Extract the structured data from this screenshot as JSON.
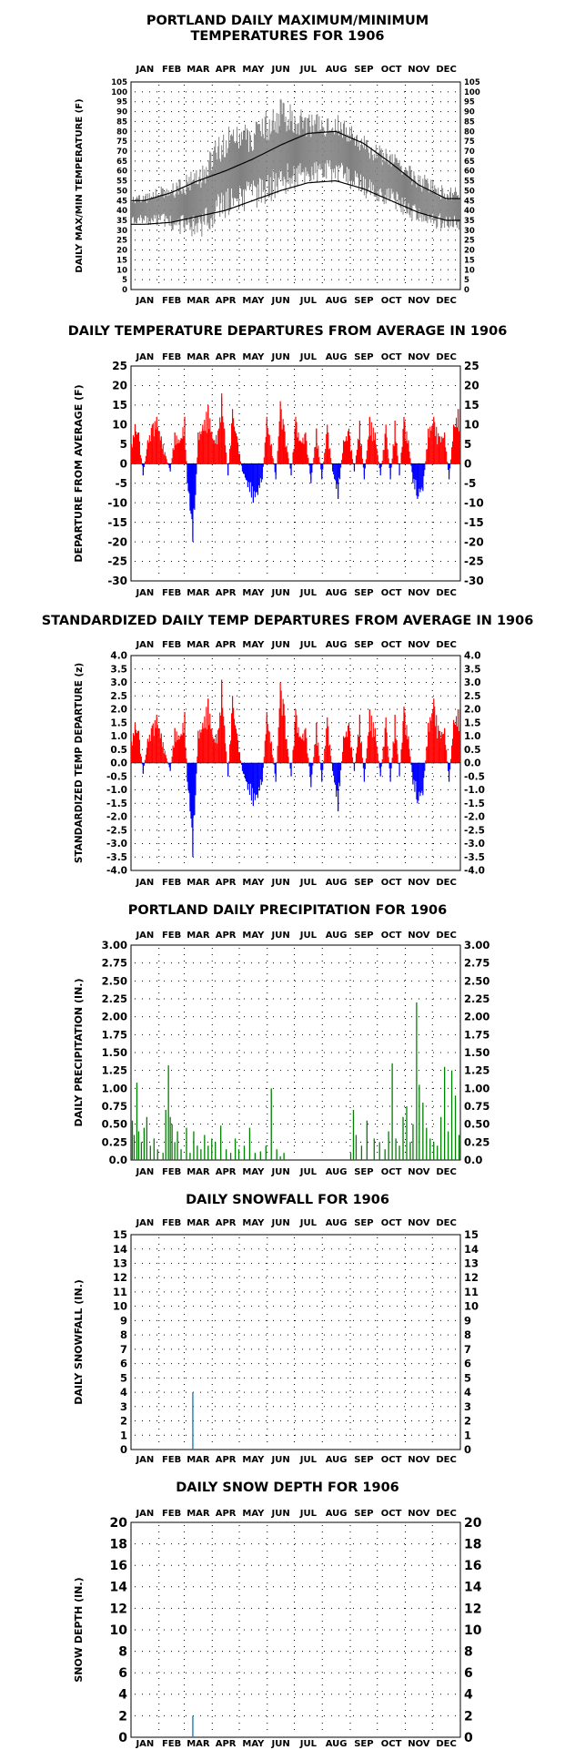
{
  "months": [
    "JAN",
    "FEB",
    "MAR",
    "APR",
    "MAY",
    "JUN",
    "JUL",
    "AUG",
    "SEP",
    "OCT",
    "NOV",
    "DEC"
  ],
  "colors": {
    "gray_series": "#808080",
    "normal_line": "#000000",
    "positive": "#ff0000",
    "negative": "#0000ff",
    "precip": "#008000",
    "snow": "#1e7fbf"
  },
  "panels": [
    {
      "title_lines": [
        "PORTLAND DAILY MAXIMUM/MINIMUM",
        "TEMPERATURES FOR 1906"
      ]
    },
    {
      "title_lines": [
        "DAILY TEMPERATURE DEPARTURES FROM AVERAGE IN 1906"
      ]
    },
    {
      "title_lines": [
        "STANDARDIZED DAILY TEMP DEPARTURES FROM AVERAGE IN 1906"
      ]
    },
    {
      "title_lines": [
        "PORTLAND DAILY PRECIPITATION FOR 1906"
      ]
    },
    {
      "title_lines": [
        "DAILY SNOWFALL FOR 1906"
      ]
    },
    {
      "title_lines": [
        "DAILY SNOW DEPTH FOR 1906"
      ]
    }
  ],
  "chart_data": [
    {
      "type": "area",
      "title": "PORTLAND DAILY MAXIMUM/MINIMUM TEMPERATURES FOR 1906",
      "xlabel": "",
      "ylabel": "DAILY MAX/MIN TEMPERATURE (F)",
      "ylim": [
        0,
        105
      ],
      "yticks": [
        "0",
        "5",
        "10",
        "15",
        "20",
        "25",
        "30",
        "35",
        "40",
        "45",
        "50",
        "55",
        "60",
        "65",
        "70",
        "75",
        "80",
        "85",
        "90",
        "95",
        "100",
        "105"
      ],
      "grid": true,
      "daily_range_max_by_month": [
        49,
        54,
        62,
        83,
        84,
        97,
        90,
        90,
        79,
        70,
        60,
        52
      ],
      "daily_range_min_by_month": [
        33,
        30,
        24,
        36,
        40,
        47,
        53,
        54,
        46,
        42,
        32,
        30
      ],
      "normal_high_by_month": [
        45,
        49,
        55,
        60,
        66,
        73,
        79,
        80,
        74,
        64,
        53,
        46
      ],
      "normal_low_by_month": [
        33,
        34,
        37,
        40,
        45,
        50,
        54,
        55,
        51,
        45,
        39,
        35
      ]
    },
    {
      "type": "bar",
      "title": "DAILY TEMPERATURE DEPARTURES FROM AVERAGE IN 1906",
      "xlabel": "",
      "ylabel": "DEPARTURE FROM AVERAGE (F)",
      "ylim": [
        -30,
        25
      ],
      "yticks": [
        "-30",
        "-25",
        "-20",
        "-15",
        "-10",
        "-5",
        "0",
        "5",
        "10",
        "15",
        "20",
        "25"
      ],
      "yticks_right": [
        "-30",
        "-25",
        "-20",
        "-15",
        "-10",
        "-5",
        "0",
        "5",
        "10",
        "15",
        "20",
        "25"
      ],
      "grid": true,
      "day_of_year": [
        1,
        5,
        9,
        14,
        19,
        24,
        29,
        34,
        39,
        44,
        49,
        55,
        60,
        63,
        66,
        69,
        72,
        75,
        80,
        86,
        92,
        98,
        101,
        104,
        108,
        113,
        118,
        124,
        130,
        136,
        141,
        146,
        151,
        156,
        161,
        166,
        170,
        174,
        178,
        183,
        188,
        194,
        200,
        206,
        212,
        218,
        224,
        230,
        236,
        242,
        248,
        254,
        259,
        265,
        271,
        277,
        283,
        288,
        293,
        298,
        303,
        308,
        313,
        318,
        324,
        330,
        336,
        342,
        348,
        353,
        358,
        363
      ],
      "values": [
        5,
        10,
        8,
        -3,
        6,
        10,
        12,
        7,
        2,
        -2,
        8,
        6,
        12,
        -5,
        -12,
        -20,
        -8,
        8,
        10,
        15,
        6,
        9,
        18,
        9,
        -3,
        14,
        7,
        -2,
        -6,
        -10,
        -8,
        -4,
        12,
        5,
        -4,
        16,
        10,
        3,
        -3,
        12,
        6,
        8,
        -5,
        9,
        -4,
        10,
        -2,
        -9,
        6,
        9,
        -2,
        11,
        -4,
        12,
        8,
        -3,
        10,
        -4,
        11,
        -3,
        12,
        6,
        -5,
        -9,
        -7,
        9,
        12,
        7,
        8,
        -4,
        10,
        14
      ]
    },
    {
      "type": "bar",
      "title": "STANDARDIZED DAILY TEMP DEPARTURES FROM AVERAGE IN 1906",
      "xlabel": "",
      "ylabel": "STANDARDIZED TEMP DEPARTURE (z)",
      "ylim": [
        -4,
        4
      ],
      "yticks": [
        "-4.0",
        "-3.5",
        "-3.0",
        "-2.5",
        "-2.0",
        "-1.5",
        "-1.0",
        "-0.5",
        "0.0",
        "0.5",
        "1.0",
        "1.5",
        "2.0",
        "2.5",
        "3.0",
        "3.5",
        "4.0"
      ],
      "yticks_right": [
        "-4.0",
        "-3.5",
        "-3.0",
        "-2.5",
        "-2.0",
        "-1.5",
        "-1.0",
        "-0.5",
        "0.0",
        "0.5",
        "1.0",
        "1.5",
        "2.0",
        "2.5",
        "3.0",
        "3.5",
        "4.0"
      ],
      "grid": true,
      "day_of_year": [
        1,
        5,
        9,
        14,
        19,
        24,
        29,
        34,
        39,
        44,
        49,
        55,
        60,
        63,
        66,
        69,
        72,
        75,
        80,
        86,
        92,
        98,
        101,
        104,
        108,
        113,
        118,
        124,
        130,
        136,
        141,
        146,
        151,
        156,
        161,
        166,
        170,
        174,
        178,
        183,
        188,
        194,
        200,
        206,
        212,
        218,
        224,
        230,
        236,
        242,
        248,
        254,
        259,
        265,
        271,
        277,
        283,
        288,
        293,
        298,
        303,
        308,
        313,
        318,
        324,
        330,
        336,
        342,
        348,
        353,
        358,
        363
      ],
      "values": [
        0.8,
        1.5,
        1.2,
        -0.4,
        0.9,
        1.4,
        1.8,
        1.1,
        0.3,
        -0.3,
        1.3,
        1.0,
        1.9,
        -0.7,
        -1.8,
        -3.5,
        -1.2,
        1.2,
        1.5,
        2.4,
        0.9,
        1.3,
        3.1,
        1.4,
        -0.5,
        2.5,
        1.1,
        -0.3,
        -1.0,
        -1.6,
        -1.3,
        -0.7,
        1.9,
        0.8,
        -0.7,
        3.0,
        2.2,
        0.5,
        -0.5,
        2.0,
        1.0,
        1.3,
        -0.9,
        1.5,
        -0.7,
        1.7,
        -0.3,
        -1.8,
        1.0,
        1.5,
        -0.3,
        1.8,
        -0.7,
        2.0,
        1.3,
        -0.5,
        1.7,
        -0.7,
        1.8,
        -0.5,
        2.1,
        1.0,
        -0.8,
        -1.5,
        -1.2,
        1.5,
        2.4,
        1.2,
        1.3,
        -0.7,
        1.6,
        2.0
      ]
    },
    {
      "type": "bar",
      "title": "PORTLAND DAILY PRECIPITATION FOR 1906",
      "xlabel": "",
      "ylabel": "DAILY PRECIPITATION (IN.)",
      "ylim": [
        0,
        3
      ],
      "yticks": [
        "0.0",
        "0.25",
        "0.50",
        "0.75",
        "1.00",
        "1.25",
        "1.50",
        "1.75",
        "2.00",
        "2.25",
        "2.50",
        "2.75",
        "3.00"
      ],
      "yticks_right": [
        "0.0",
        "0.25",
        "0.50",
        "0.75",
        "1.00",
        "1.25",
        "1.50",
        "1.75",
        "2.00",
        "2.25",
        "2.50",
        "2.75",
        "3.00"
      ],
      "grid": true,
      "day_of_year": [
        2,
        4,
        7,
        9,
        12,
        15,
        18,
        22,
        26,
        30,
        36,
        39,
        42,
        44,
        46,
        49,
        52,
        56,
        62,
        66,
        70,
        74,
        78,
        82,
        86,
        90,
        94,
        100,
        106,
        111,
        116,
        120,
        126,
        132,
        138,
        144,
        150,
        156,
        162,
        166,
        170,
        244,
        247,
        250,
        256,
        262,
        270,
        276,
        282,
        286,
        290,
        294,
        298,
        302,
        306,
        310,
        313,
        317,
        320,
        324,
        328,
        332,
        336,
        340,
        344,
        348,
        352,
        356,
        360,
        364
      ],
      "values": [
        0.55,
        0.35,
        1.08,
        0.4,
        0.25,
        0.45,
        0.6,
        0.2,
        0.3,
        0.15,
        0.1,
        0.7,
        1.32,
        0.6,
        0.5,
        0.25,
        0.4,
        0.15,
        0.45,
        0.1,
        0.4,
        0.2,
        0.15,
        0.35,
        0.2,
        0.3,
        0.25,
        0.48,
        0.15,
        0.1,
        0.3,
        0.15,
        0.2,
        0.45,
        0.1,
        0.12,
        0.2,
        1.0,
        0.15,
        0.05,
        0.1,
        0.1,
        0.7,
        0.35,
        0.2,
        0.55,
        0.3,
        0.25,
        0.15,
        0.4,
        1.35,
        0.3,
        0.2,
        0.6,
        0.75,
        0.25,
        0.5,
        2.2,
        1.05,
        0.8,
        0.45,
        0.3,
        0.25,
        0.2,
        0.6,
        1.3,
        0.4,
        1.25,
        0.9,
        0.35
      ]
    },
    {
      "type": "bar",
      "title": "DAILY SNOWFALL FOR 1906",
      "xlabel": "",
      "ylabel": "DAILY SNOWFALL (IN.)",
      "ylim": [
        0,
        15
      ],
      "yticks": [
        "0",
        "1",
        "2",
        "3",
        "4",
        "5",
        "6",
        "7",
        "8",
        "9",
        "10",
        "11",
        "12",
        "13",
        "14",
        "15"
      ],
      "yticks_right": [
        "0",
        "1",
        "2",
        "3",
        "4",
        "5",
        "6",
        "7",
        "8",
        "9",
        "10",
        "11",
        "12",
        "13",
        "14",
        "15"
      ],
      "grid": true,
      "day_of_year": [
        69
      ],
      "values": [
        4
      ]
    },
    {
      "type": "bar",
      "title": "DAILY SNOW DEPTH FOR 1906",
      "xlabel": "",
      "ylabel": "SNOW DEPTH (IN.)",
      "ylim": [
        0,
        20
      ],
      "yticks": [
        "0",
        "2",
        "4",
        "6",
        "8",
        "10",
        "12",
        "14",
        "16",
        "18",
        "20"
      ],
      "yticks_right": [
        "0",
        "2",
        "4",
        "6",
        "8",
        "10",
        "12",
        "14",
        "16",
        "18",
        "20"
      ],
      "grid": true,
      "day_of_year": [
        69
      ],
      "values": [
        2
      ]
    }
  ]
}
